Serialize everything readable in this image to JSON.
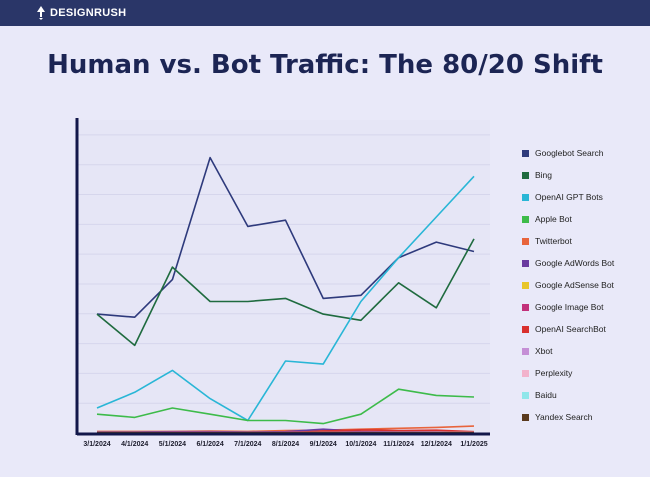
{
  "header": {
    "brand": "DESIGNRUSH"
  },
  "title": "Human vs. Bot Traffic: The 80/20 Shift",
  "chart_data": {
    "type": "line",
    "title": "Human vs. Bot Traffic: The 80/20 Shift",
    "xlabel": "",
    "ylabel": "",
    "ylim": [
      0,
      100
    ],
    "grid": true,
    "legend_position": "right",
    "categories": [
      "3/1/2024",
      "4/1/2024",
      "5/1/2024",
      "6/1/2024",
      "7/1/2024",
      "8/1/2024",
      "9/1/2024",
      "10/1/2024",
      "11/1/2024",
      "12/1/2024",
      "1/1/2025"
    ],
    "series": [
      {
        "name": "Googlebot Search",
        "color": "#2e3a7c",
        "values": [
          38,
          37,
          49,
          88,
          66,
          68,
          43,
          44,
          56,
          61,
          58
        ]
      },
      {
        "name": "Bing",
        "color": "#1f6b3f",
        "values": [
          38,
          28,
          53,
          42,
          42,
          43,
          38,
          36,
          48,
          40,
          62
        ]
      },
      {
        "name": "OpenAI GPT Bots",
        "color": "#29b6d6",
        "values": [
          8,
          13,
          20,
          11,
          4,
          23,
          22,
          42,
          56,
          69,
          82
        ]
      },
      {
        "name": "Apple Bot",
        "color": "#3dbb4a",
        "values": [
          6,
          5,
          8,
          6,
          4,
          4,
          3,
          6,
          14,
          12,
          11.5
        ]
      },
      {
        "name": "Twitterbot",
        "color": "#e8643c",
        "values": [
          0.5,
          0.5,
          0.5,
          0.6,
          0.5,
          0.8,
          0.9,
          1.2,
          1.5,
          1.8,
          2.2
        ]
      },
      {
        "name": "Google AdWords Bot",
        "color": "#6a3aa0",
        "values": [
          0.3,
          0.3,
          0.4,
          0.4,
          0.3,
          0.4,
          1.2,
          0.5,
          0.4,
          0.3,
          0.3
        ]
      },
      {
        "name": "Google AdSense Bot",
        "color": "#e8c62a",
        "values": [
          0.2,
          0.2,
          0.2,
          0.2,
          0.2,
          0.2,
          0.2,
          0.2,
          0.2,
          0.2,
          0.2
        ]
      },
      {
        "name": "Google Image Bot",
        "color": "#c2307a",
        "values": [
          0.2,
          0.2,
          0.3,
          0.3,
          0.2,
          0.3,
          0.4,
          0.3,
          0.3,
          0.3,
          0.3
        ]
      },
      {
        "name": "OpenAI SearchBot",
        "color": "#d9302e",
        "values": [
          0,
          0,
          0,
          0,
          0,
          0,
          0.6,
          1.0,
          0.8,
          0.9,
          0.4
        ]
      },
      {
        "name": "Xbot",
        "color": "#c58fd6",
        "values": [
          0.1,
          0.1,
          0.1,
          0.1,
          0.1,
          0.1,
          0.1,
          0.1,
          0.1,
          0.1,
          0.1
        ]
      },
      {
        "name": "Perplexity",
        "color": "#f2b2cc",
        "values": [
          0,
          0,
          0,
          0,
          0,
          0,
          0.1,
          0.1,
          0.2,
          0.2,
          0.2
        ]
      },
      {
        "name": "Baidu",
        "color": "#8fe6ea",
        "values": [
          0.1,
          0.1,
          0.1,
          0.1,
          0.1,
          0.1,
          0.1,
          0.1,
          0.1,
          0.1,
          0.1
        ]
      },
      {
        "name": "Yandex Search",
        "color": "#5a3a1e",
        "values": [
          0.1,
          0.1,
          0.1,
          0.1,
          0.1,
          0.1,
          0.1,
          0.1,
          0.1,
          0.1,
          0.1
        ]
      }
    ]
  }
}
